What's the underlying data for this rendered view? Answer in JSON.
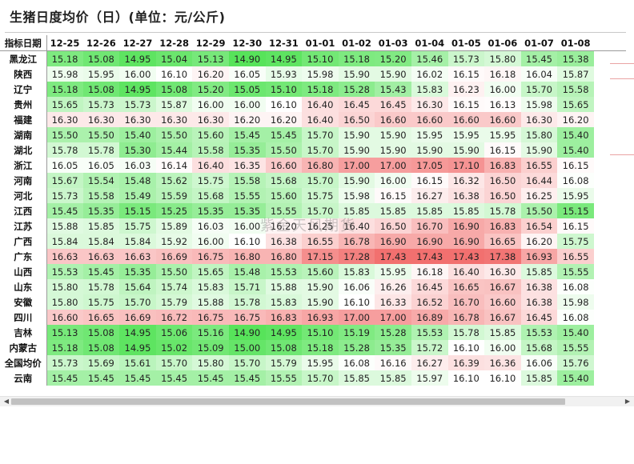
{
  "title": "生猪日度均价（日）(单位：元/公斤)",
  "corner_label": "指标日期",
  "watermark": "紫金天风期货",
  "dates": [
    "12-25",
    "12-26",
    "12-27",
    "12-28",
    "12-29",
    "12-30",
    "12-31",
    "01-01",
    "01-02",
    "01-03",
    "01-04",
    "01-05",
    "01-06",
    "01-07",
    "01-08"
  ],
  "rows": [
    {
      "name": "黑龙江",
      "values": [
        "15.18",
        "15.08",
        "14.95",
        "15.04",
        "15.13",
        "14.90",
        "14.95",
        "15.10",
        "15.18",
        "15.20",
        "15.46",
        "15.73",
        "15.80",
        "15.45",
        "15.38"
      ]
    },
    {
      "name": "陕西",
      "values": [
        "15.98",
        "15.95",
        "16.00",
        "16.10",
        "16.20",
        "16.05",
        "15.93",
        "15.98",
        "15.90",
        "15.90",
        "16.02",
        "16.15",
        "16.18",
        "16.04",
        "15.87"
      ]
    },
    {
      "name": "辽宁",
      "values": [
        "15.18",
        "15.08",
        "14.95",
        "15.08",
        "15.20",
        "15.05",
        "15.10",
        "15.18",
        "15.28",
        "15.43",
        "15.83",
        "16.23",
        "16.00",
        "15.70",
        "15.58"
      ]
    },
    {
      "name": "贵州",
      "values": [
        "15.65",
        "15.73",
        "15.73",
        "15.87",
        "16.00",
        "16.00",
        "16.10",
        "16.40",
        "16.45",
        "16.45",
        "16.30",
        "16.15",
        "16.13",
        "15.98",
        "15.65"
      ]
    },
    {
      "name": "福建",
      "values": [
        "16.30",
        "16.30",
        "16.30",
        "16.30",
        "16.30",
        "16.20",
        "16.20",
        "16.40",
        "16.50",
        "16.60",
        "16.60",
        "16.60",
        "16.60",
        "16.30",
        "16.20"
      ]
    },
    {
      "name": "湖南",
      "values": [
        "15.50",
        "15.50",
        "15.40",
        "15.50",
        "15.60",
        "15.45",
        "15.45",
        "15.70",
        "15.90",
        "15.90",
        "15.95",
        "15.95",
        "15.95",
        "15.80",
        "15.40"
      ]
    },
    {
      "name": "湖北",
      "values": [
        "15.78",
        "15.78",
        "15.30",
        "15.44",
        "15.58",
        "15.35",
        "15.50",
        "15.70",
        "15.90",
        "15.90",
        "15.90",
        "15.90",
        "16.15",
        "15.90",
        "15.40"
      ]
    },
    {
      "name": "浙江",
      "values": [
        "16.05",
        "16.05",
        "16.03",
        "16.14",
        "16.40",
        "16.35",
        "16.60",
        "16.80",
        "17.00",
        "17.00",
        "17.05",
        "17.10",
        "16.83",
        "16.55",
        "16.15"
      ]
    },
    {
      "name": "河南",
      "values": [
        "15.67",
        "15.54",
        "15.48",
        "15.62",
        "15.75",
        "15.58",
        "15.68",
        "15.70",
        "15.90",
        "16.00",
        "16.15",
        "16.32",
        "16.50",
        "16.44",
        "16.08"
      ]
    },
    {
      "name": "河北",
      "values": [
        "15.73",
        "15.58",
        "15.49",
        "15.59",
        "15.68",
        "15.55",
        "15.60",
        "15.75",
        "15.98",
        "16.15",
        "16.27",
        "16.38",
        "16.50",
        "16.25",
        "15.95"
      ]
    },
    {
      "name": "江西",
      "values": [
        "15.45",
        "15.35",
        "15.15",
        "15.25",
        "15.35",
        "15.35",
        "15.55",
        "15.70",
        "15.85",
        "15.85",
        "15.85",
        "15.85",
        "15.78",
        "15.50",
        "15.15"
      ]
    },
    {
      "name": "江苏",
      "values": [
        "15.88",
        "15.85",
        "15.75",
        "15.89",
        "16.03",
        "16.00",
        "16.20",
        "16.25",
        "16.40",
        "16.50",
        "16.70",
        "16.90",
        "16.83",
        "16.54",
        "16.15"
      ]
    },
    {
      "name": "广西",
      "values": [
        "15.84",
        "15.84",
        "15.84",
        "15.92",
        "16.00",
        "16.10",
        "16.38",
        "16.55",
        "16.78",
        "16.90",
        "16.90",
        "16.90",
        "16.65",
        "16.20",
        "15.75"
      ]
    },
    {
      "name": "广东",
      "values": [
        "16.63",
        "16.63",
        "16.63",
        "16.69",
        "16.75",
        "16.80",
        "16.80",
        "17.15",
        "17.28",
        "17.43",
        "17.43",
        "17.43",
        "17.38",
        "16.93",
        "16.55"
      ]
    },
    {
      "name": "山西",
      "values": [
        "15.53",
        "15.45",
        "15.35",
        "15.50",
        "15.65",
        "15.48",
        "15.53",
        "15.60",
        "15.83",
        "15.95",
        "16.18",
        "16.40",
        "16.30",
        "15.85",
        "15.55"
      ]
    },
    {
      "name": "山东",
      "values": [
        "15.80",
        "15.78",
        "15.64",
        "15.74",
        "15.83",
        "15.71",
        "15.88",
        "15.90",
        "16.06",
        "16.26",
        "16.45",
        "16.65",
        "16.67",
        "16.38",
        "16.08"
      ]
    },
    {
      "name": "安徽",
      "values": [
        "15.80",
        "15.75",
        "15.70",
        "15.79",
        "15.88",
        "15.78",
        "15.83",
        "15.90",
        "16.10",
        "16.33",
        "16.52",
        "16.70",
        "16.60",
        "16.38",
        "15.98"
      ]
    },
    {
      "name": "四川",
      "values": [
        "16.60",
        "16.65",
        "16.69",
        "16.72",
        "16.75",
        "16.75",
        "16.83",
        "16.93",
        "17.00",
        "17.00",
        "16.89",
        "16.78",
        "16.67",
        "16.45",
        "16.08"
      ]
    },
    {
      "name": "吉林",
      "values": [
        "15.13",
        "15.08",
        "14.95",
        "15.06",
        "15.16",
        "14.90",
        "14.95",
        "15.10",
        "15.19",
        "15.28",
        "15.53",
        "15.78",
        "15.85",
        "15.53",
        "15.40"
      ]
    },
    {
      "name": "内蒙古",
      "values": [
        "15.18",
        "15.08",
        "14.95",
        "15.02",
        "15.09",
        "15.00",
        "15.08",
        "15.18",
        "15.28",
        "15.35",
        "15.72",
        "16.10",
        "16.00",
        "15.68",
        "15.55"
      ]
    },
    {
      "name": "全国均价",
      "values": [
        "15.73",
        "15.69",
        "15.61",
        "15.70",
        "15.80",
        "15.70",
        "15.79",
        "15.95",
        "16.08",
        "16.16",
        "16.27",
        "16.39",
        "16.36",
        "16.06",
        "15.76"
      ]
    },
    {
      "name": "云南",
      "values": [
        "15.45",
        "15.45",
        "15.45",
        "15.45",
        "15.45",
        "15.45",
        "15.55",
        "15.70",
        "15.85",
        "15.85",
        "15.97",
        "16.10",
        "16.10",
        "15.85",
        "15.40"
      ]
    }
  ],
  "color_scale": {
    "low": "#57e35a",
    "mid": "#ffffff",
    "high": "#f2706f",
    "min_value": 14.9,
    "max_value": 17.43,
    "mid_value": 16.1
  },
  "scrollbar": {
    "left_arrow": "◀",
    "right_arrow": "▶"
  }
}
